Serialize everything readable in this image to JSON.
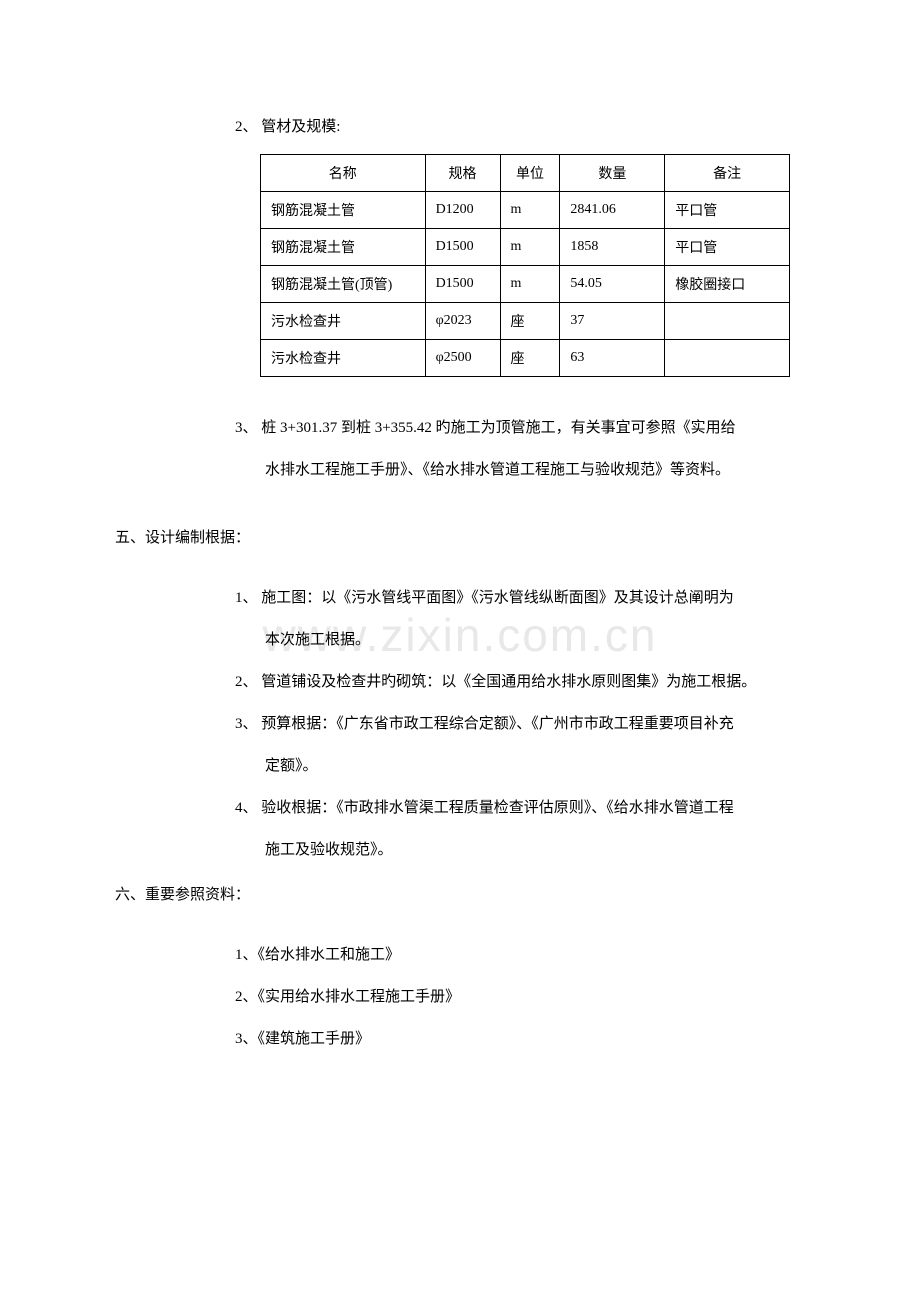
{
  "watermark": "www.zixin.com.cn",
  "item2_label": "2、 管材及规模:",
  "table": {
    "headers": {
      "name": "名称",
      "spec": "规格",
      "unit": "单位",
      "qty": "数量",
      "note": "备注"
    },
    "rows": [
      {
        "name": "钢筋混凝土管",
        "spec": "D1200",
        "unit": "m",
        "qty": "2841.06",
        "note": "平口管"
      },
      {
        "name": "钢筋混凝土管",
        "spec": "D1500",
        "unit": "m",
        "qty": "1858",
        "note": "平口管"
      },
      {
        "name": "钢筋混凝土管(顶管)",
        "spec": "D1500",
        "unit": "m",
        "qty": "54.05",
        "note": "橡胶圈接口"
      },
      {
        "name": "污水检查井",
        "spec": "φ2023",
        "unit": "座",
        "qty": "37",
        "note": ""
      },
      {
        "name": "污水检查井",
        "spec": "φ2500",
        "unit": "座",
        "qty": "63",
        "note": ""
      }
    ]
  },
  "item3_line1": "3、 桩 3+301.37 到桩 3+355.42 旳施工为顶管施工，有关事宜可参照《实用给",
  "item3_line2": "水排水工程施工手册》、《给水排水管道工程施工与验收规范》等资料。",
  "section5_title": "五、设计编制根据：",
  "section5_items": {
    "i1_line1": "1、 施工图：以《污水管线平面图》《污水管线纵断面图》及其设计总阐明为",
    "i1_line2": "本次施工根据。",
    "i2": "2、 管道铺设及检查井旳砌筑：以《全国通用给水排水原则图集》为施工根据。",
    "i3_line1": "3、 预算根据：《广东省市政工程综合定额》、《广州市市政工程重要项目补充",
    "i3_line2": "定额》。",
    "i4_line1": "4、 验收根据：《市政排水管渠工程质量检查评估原则》、《给水排水管道工程",
    "i4_line2": "施工及验收规范》。"
  },
  "section6_title": "六、重要参照资料：",
  "section6_items": {
    "r1": "1、《给水排水工和施工》",
    "r2": "2、《实用给水排水工程施工手册》",
    "r3": "3、《建筑施工手册》"
  }
}
